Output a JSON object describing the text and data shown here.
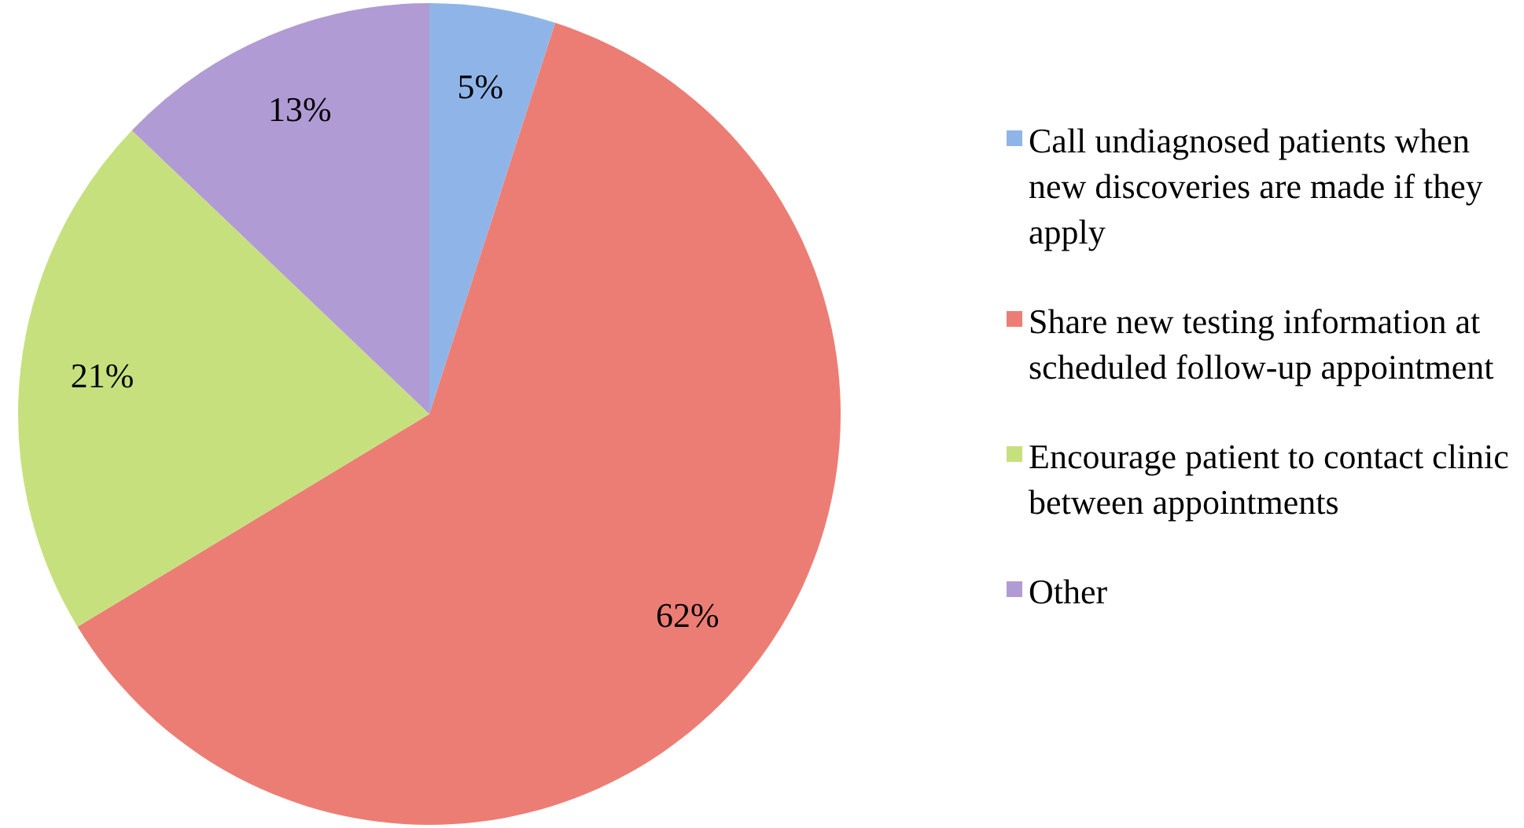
{
  "chart_data": {
    "type": "pie",
    "categories": [
      "Call undiagnosed patients when new discoveries are made if they apply",
      "Share new testing information at scheduled follow-up appointment",
      "Encourage patient to contact clinic between appointments",
      "Other"
    ],
    "values": [
      5,
      62,
      21,
      13
    ],
    "value_labels": [
      "5%",
      "62%",
      "21%",
      "13%"
    ],
    "colors": [
      "#8fb5e8",
      "#ec7d74",
      "#c6e07e",
      "#b19bd4"
    ],
    "legend": "right"
  }
}
